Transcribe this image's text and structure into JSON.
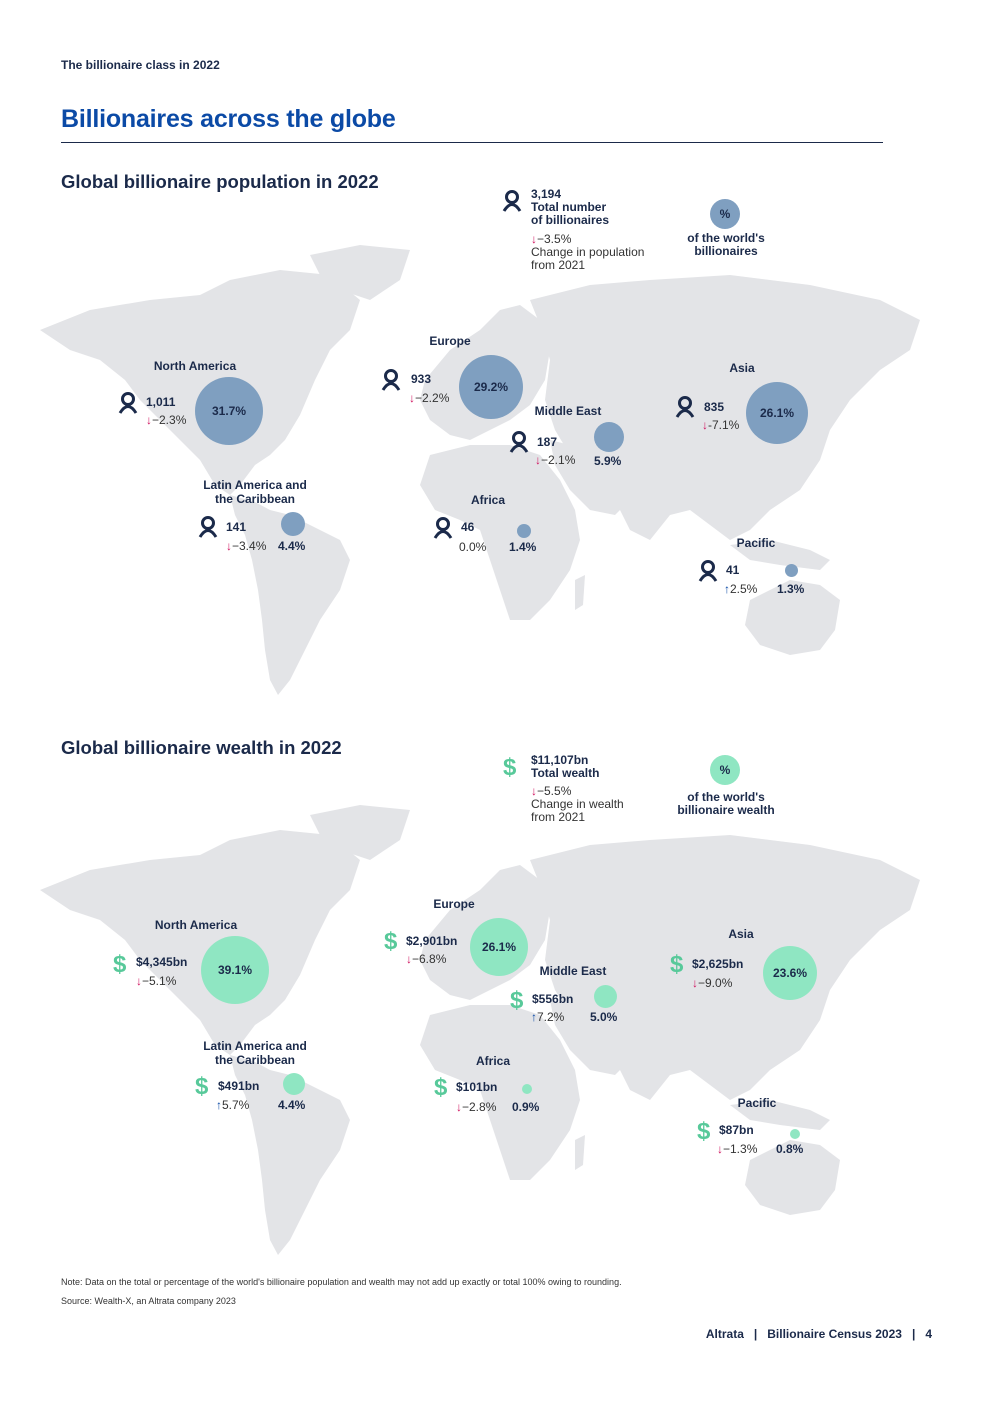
{
  "header": {
    "running_head": "The billionaire class in 2022"
  },
  "page_title": "Billionaires across the globe",
  "population": {
    "title": "Global billionaire population in 2022",
    "legend": {
      "total_value": "3,194",
      "total_label_1": "Total number",
      "total_label_2": "of billionaires",
      "change_value": "−3.5%",
      "change_label_1": "Change in population",
      "change_label_2": "from 2021",
      "pct_symbol": "%",
      "pct_label_1": "of the world's",
      "pct_label_2": "billionaires"
    },
    "regions": {
      "north_america": {
        "name": "North America",
        "count": "1,011",
        "change": "−2.3%",
        "pct": "31.7%"
      },
      "latin_america": {
        "name_1": "Latin America and",
        "name_2": "the Caribbean",
        "count": "141",
        "change": "−3.4%",
        "pct": "4.4%"
      },
      "europe": {
        "name": "Europe",
        "count": "933",
        "change": "−2.2%",
        "pct": "29.2%"
      },
      "middle_east": {
        "name": "Middle East",
        "count": "187",
        "change": "−2.1%",
        "pct": "5.9%"
      },
      "africa": {
        "name": "Africa",
        "count": "46",
        "change": "0.0%",
        "pct": "1.4%"
      },
      "asia": {
        "name": "Asia",
        "count": "835",
        "change": "-7.1%",
        "pct": "26.1%"
      },
      "pacific": {
        "name": "Pacific",
        "count": "41",
        "change": "2.5%",
        "pct": "1.3%"
      }
    }
  },
  "wealth": {
    "title": "Global billionaire wealth in 2022",
    "legend": {
      "total_value": "$11,107bn",
      "total_label": "Total wealth",
      "change_value": "−5.5%",
      "change_label_1": "Change in wealth",
      "change_label_2": "from 2021",
      "pct_symbol": "%",
      "pct_label_1": "of the world's",
      "pct_label_2": "billionaire wealth"
    },
    "regions": {
      "north_america": {
        "name": "North America",
        "amount": "$4,345bn",
        "change": "−5.1%",
        "pct": "39.1%"
      },
      "latin_america": {
        "name_1": "Latin America and",
        "name_2": "the Caribbean",
        "amount": "$491bn",
        "change": "5.7%",
        "pct": "4.4%"
      },
      "europe": {
        "name": "Europe",
        "amount": "$2,901bn",
        "change": "−6.8%",
        "pct": "26.1%"
      },
      "middle_east": {
        "name": "Middle East",
        "amount": "$556bn",
        "change": "7.2%",
        "pct": "5.0%"
      },
      "africa": {
        "name": "Africa",
        "amount": "$101bn",
        "change": "−2.8%",
        "pct": "0.9%"
      },
      "asia": {
        "name": "Asia",
        "amount": "$2,625bn",
        "change": "−9.0%",
        "pct": "23.6%"
      },
      "pacific": {
        "name": "Pacific",
        "amount": "$87bn",
        "change": "−1.3%",
        "pct": "0.8%"
      }
    }
  },
  "colors": {
    "title_blue": "#0b4aa6",
    "navy": "#1b2a4a",
    "pop_bubble": "#7f9fc0",
    "wealth_bubble": "#8fe6c2",
    "down_arrow": "#d0145f",
    "up_arrow": "#0b4aa6",
    "land": "#e3e4e7"
  },
  "icons": {
    "population": "person-icon",
    "wealth": "dollar-icon",
    "down": "arrow-down-icon",
    "up": "arrow-up-icon"
  },
  "note": "Note: Data on the total or percentage of the world's billionaire population and wealth may not add up exactly or total 100% owing to rounding.",
  "source": "Source: Wealth-X, an Altrata company 2023",
  "footer": "Altrata   |   Billionaire Census 2023   |   4"
}
